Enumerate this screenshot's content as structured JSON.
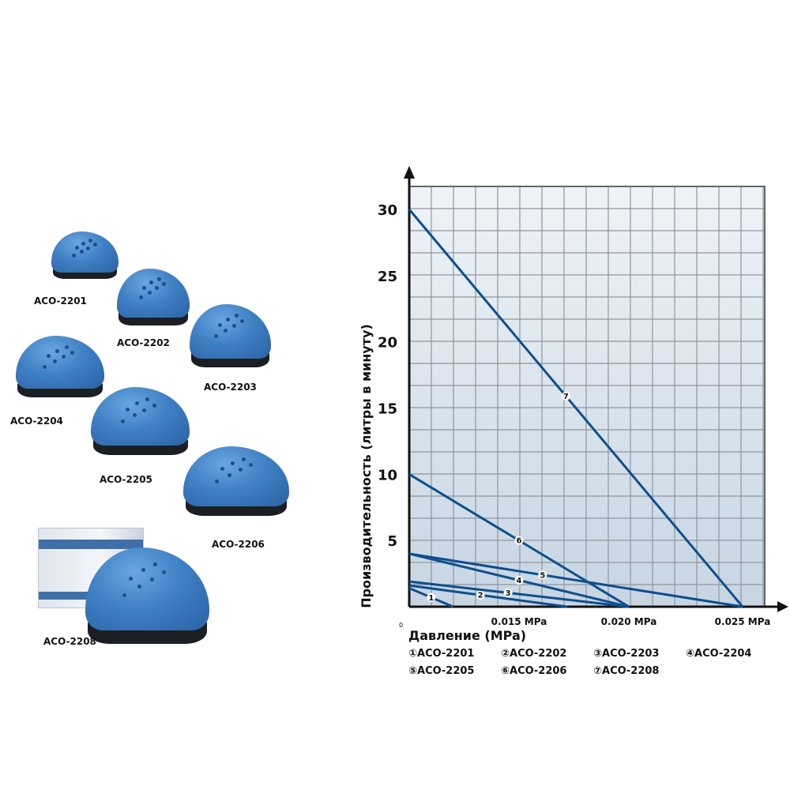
{
  "products": [
    {
      "model": "ACO-2201"
    },
    {
      "model": "ACO-2202"
    },
    {
      "model": "ACO-2203"
    },
    {
      "model": "ACO-2204"
    },
    {
      "model": "ACO-2205"
    },
    {
      "model": "ACO-2206"
    },
    {
      "model": "ACO-2208"
    }
  ],
  "chart_data": {
    "type": "line",
    "xlabel": "Давление (MPa)",
    "ylabel": "Производительность (литры в минуту)",
    "origin_label": "0",
    "x_ticks": [
      {
        "value": 0.015,
        "label": "0.015 MPa"
      },
      {
        "value": 0.02,
        "label": "0.020 MPa"
      },
      {
        "value": 0.025,
        "label": "0.025 MPa"
      }
    ],
    "y_ticks": [
      5,
      10,
      15,
      20,
      25,
      30
    ],
    "ylim": [
      0,
      31.5
    ],
    "grid": true,
    "line_color": "#0d4f8f",
    "legend_placement": "bottom",
    "series": [
      {
        "name": "ACO-2201",
        "marker": "1",
        "legend": "①ACO-2201",
        "points": [
          [
            0,
            1.4
          ],
          [
            0.006,
            0
          ]
        ]
      },
      {
        "name": "ACO-2202",
        "marker": "2",
        "legend": "②ACO-2202",
        "points": [
          [
            0,
            1.6
          ],
          [
            0.0172,
            0
          ]
        ]
      },
      {
        "name": "ACO-2203",
        "marker": "3",
        "legend": "③ACO-2203",
        "points": [
          [
            0,
            1.9
          ],
          [
            0.02,
            0
          ]
        ]
      },
      {
        "name": "ACO-2204",
        "marker": "4",
        "legend": "④ACO-2204",
        "points": [
          [
            0,
            4.0
          ],
          [
            0.02,
            0
          ]
        ]
      },
      {
        "name": "ACO-2205",
        "marker": "5",
        "legend": "⑤ACO-2205",
        "points": [
          [
            0,
            4.0
          ],
          [
            0.025,
            0
          ]
        ]
      },
      {
        "name": "ACO-2206",
        "marker": "6",
        "legend": "⑥ACO-2206",
        "points": [
          [
            0,
            10
          ],
          [
            0.02,
            0
          ]
        ]
      },
      {
        "name": "ACO-2208",
        "marker": "7",
        "legend": "⑦ACO-2208",
        "points": [
          [
            0,
            30
          ],
          [
            0.025,
            0
          ]
        ]
      }
    ]
  }
}
